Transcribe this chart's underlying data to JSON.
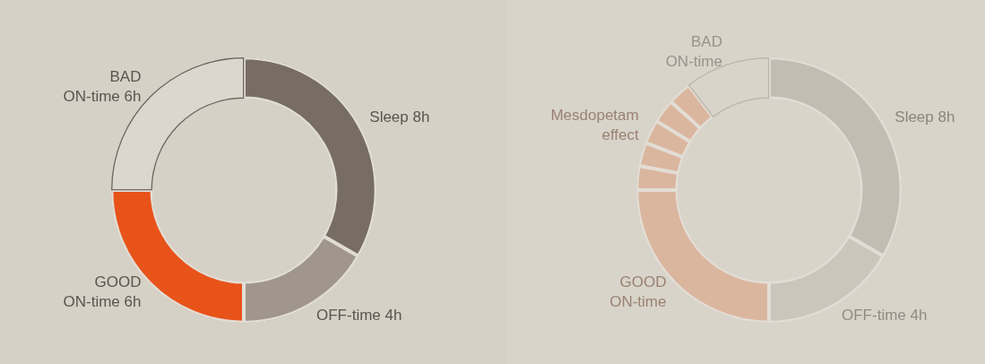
{
  "chart_data": [
    {
      "type": "donut",
      "categories": [
        "Sleep 8h",
        "OFF-time 4h",
        "GOOD ON-time 6h",
        "BAD ON-time 6h"
      ],
      "values": [
        8,
        4,
        6,
        6
      ],
      "colors": [
        "#776d62",
        "#a0968b",
        "#e8531a",
        "#dbd6ce"
      ]
    },
    {
      "type": "donut",
      "categories": [
        "Sleep 8h",
        "OFF-time 4h",
        "GOOD ON-time",
        "Mesdopetam effect",
        null,
        null,
        null,
        null,
        "BAD ON-time"
      ],
      "values": [
        8,
        4,
        6,
        0.7,
        0.7,
        0.7,
        0.7,
        0.7,
        2.5
      ],
      "colors": [
        "#c2bdb2",
        "#cbc6bb",
        "#dbb69f",
        "#dbb69f",
        "#dbb69f",
        "#dbb69f",
        "#dbb69f",
        "#dbb69f",
        "#d8d4ca"
      ]
    }
  ]
}
